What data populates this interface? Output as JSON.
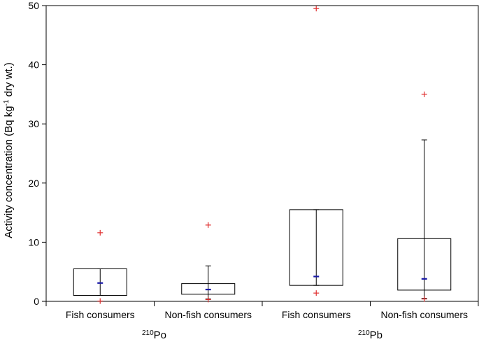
{
  "chart_data": {
    "type": "box",
    "ylabel": {
      "main": "Activity concentration (Bq kg",
      "sup": "-1",
      "tail": " dry wt.)"
    },
    "ylim": [
      0,
      50
    ],
    "yticks": [
      0,
      10,
      20,
      30,
      40,
      50
    ],
    "groups": [
      {
        "isotope_mass": "210",
        "isotope_symbol": "Po",
        "category_indices": [
          0,
          1
        ]
      },
      {
        "isotope_mass": "210",
        "isotope_symbol": "Pb",
        "category_indices": [
          2,
          3
        ]
      }
    ],
    "categories": [
      "Fish consumers",
      "Non-fish consumers",
      "Fish consumers",
      "Non-fish consumers"
    ],
    "boxes": [
      {
        "q1": 1.0,
        "median": 3.1,
        "q3": 5.5,
        "whisker_low": 1.0,
        "whisker_high": 5.5,
        "outliers": [
          11.6,
          0.05
        ]
      },
      {
        "q1": 1.2,
        "median": 2.0,
        "q3": 3.0,
        "whisker_low": 0.4,
        "whisker_high": 6.0,
        "outliers": [
          12.9,
          0.3
        ]
      },
      {
        "q1": 2.7,
        "median": 4.2,
        "q3": 15.5,
        "whisker_low": 2.7,
        "whisker_high": 15.5,
        "outliers": [
          49.5,
          1.4
        ]
      },
      {
        "q1": 1.9,
        "median": 3.8,
        "q3": 10.6,
        "whisker_low": 0.5,
        "whisker_high": 27.3,
        "outliers": [
          35.0,
          0.4
        ]
      }
    ],
    "colors": {
      "median": "#1a1aa8",
      "outlier": "#e03030",
      "box": "#000000",
      "axis": "#000000"
    }
  }
}
